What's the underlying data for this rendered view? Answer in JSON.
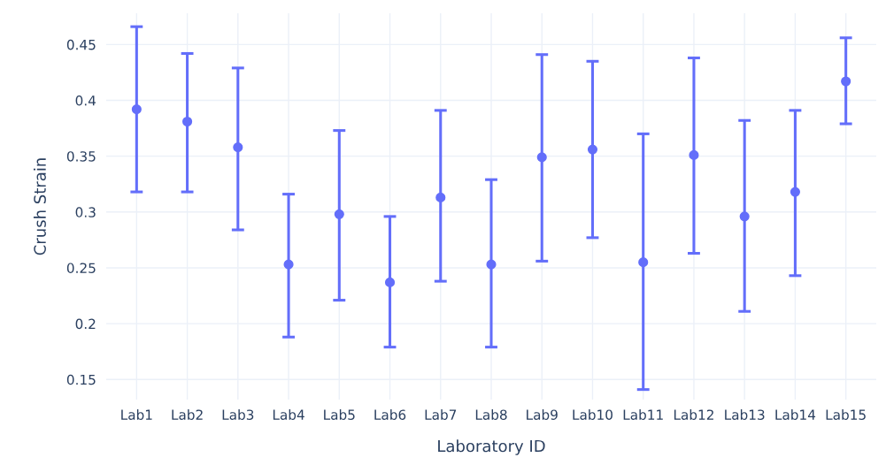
{
  "chart_data": {
    "type": "scatter",
    "xlabel": "Laboratory ID",
    "ylabel": "Crush Strain",
    "categories": [
      "Lab1",
      "Lab2",
      "Lab3",
      "Lab4",
      "Lab5",
      "Lab6",
      "Lab7",
      "Lab8",
      "Lab9",
      "Lab10",
      "Lab11",
      "Lab12",
      "Lab13",
      "Lab14",
      "Lab15"
    ],
    "series": [
      {
        "color": "#636efa",
        "values": [
          0.392,
          0.381,
          0.358,
          0.253,
          0.298,
          0.237,
          0.313,
          0.253,
          0.349,
          0.356,
          0.255,
          0.351,
          0.296,
          0.318,
          0.417
        ],
        "errors": [
          [
            0.318,
            0.466
          ],
          [
            0.318,
            0.442
          ],
          [
            0.284,
            0.429
          ],
          [
            0.188,
            0.316
          ],
          [
            0.221,
            0.373
          ],
          [
            0.179,
            0.296
          ],
          [
            0.238,
            0.391
          ],
          [
            0.179,
            0.329
          ],
          [
            0.256,
            0.441
          ],
          [
            0.277,
            0.435
          ],
          [
            0.141,
            0.37
          ],
          [
            0.263,
            0.438
          ],
          [
            0.211,
            0.382
          ],
          [
            0.243,
            0.391
          ],
          [
            0.379,
            0.456
          ]
        ]
      }
    ],
    "ylim": [
      0.132,
      0.478
    ],
    "yticks": [
      0.15,
      0.2,
      0.25,
      0.3,
      0.35,
      0.4,
      0.45
    ],
    "grid": true,
    "marker": "circle",
    "legend": false
  }
}
